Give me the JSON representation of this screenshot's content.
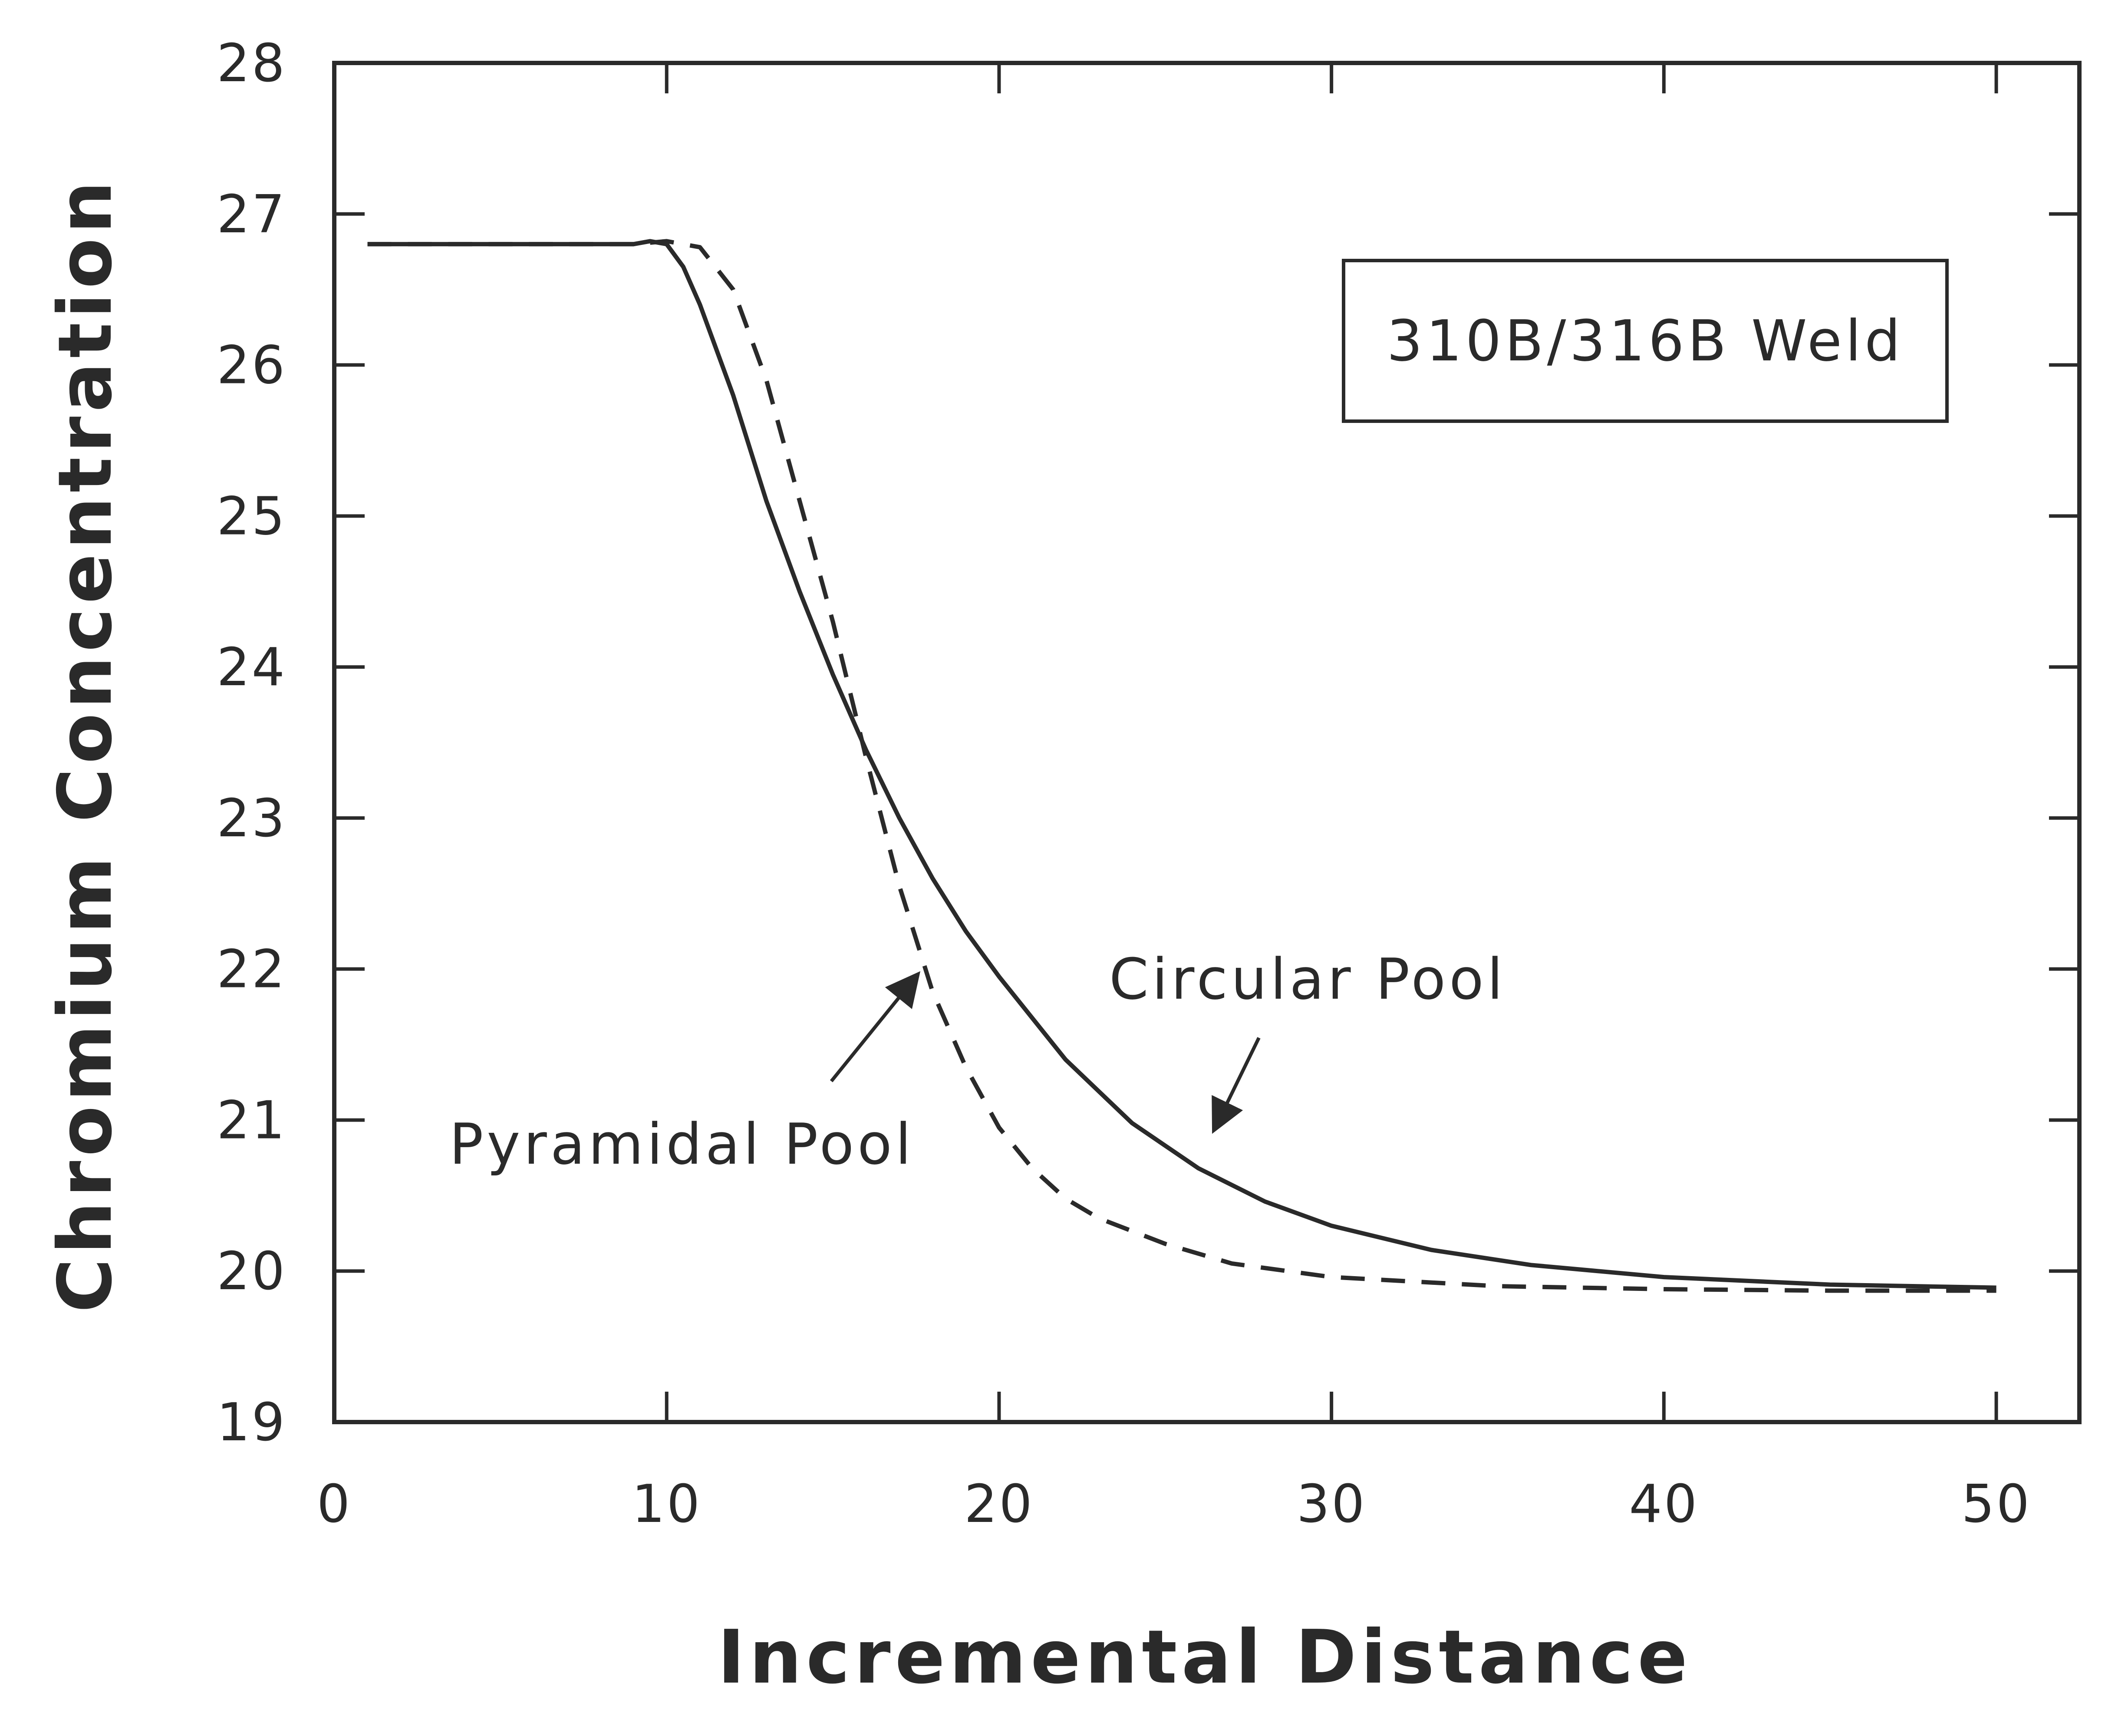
{
  "chart_data": {
    "type": "line",
    "title": "",
    "xlabel": "Incremental Distance",
    "ylabel": "Chromium Concentration",
    "xlim": [
      0,
      52.5
    ],
    "ylim": [
      19,
      28
    ],
    "xticks": [
      0,
      10,
      20,
      30,
      40,
      50
    ],
    "yticks": [
      19,
      20,
      21,
      22,
      23,
      24,
      25,
      26,
      27,
      28
    ],
    "grid": false,
    "legend_box": {
      "text": "310B/316B Weld",
      "placement": "top-right"
    },
    "series": [
      {
        "name": "Circular Pool",
        "style": "solid",
        "x": [
          1,
          5,
          9,
          9.5,
          10,
          10.5,
          11,
          12,
          13,
          14,
          15,
          16,
          17,
          18,
          19,
          20,
          22,
          24,
          26,
          28,
          30,
          33,
          36,
          40,
          45,
          50
        ],
        "y": [
          26.8,
          26.8,
          26.8,
          26.82,
          26.8,
          26.65,
          26.4,
          25.8,
          25.1,
          24.5,
          23.95,
          23.45,
          23.0,
          22.6,
          22.25,
          21.95,
          21.4,
          20.98,
          20.68,
          20.46,
          20.3,
          20.14,
          20.04,
          19.96,
          19.91,
          19.89
        ]
      },
      {
        "name": "Pyramidal Pool",
        "style": "dashed",
        "x": [
          1,
          5,
          9,
          10,
          11,
          12,
          13,
          14,
          15,
          16,
          17,
          18,
          19,
          20,
          21,
          22,
          23,
          25,
          27,
          30,
          35,
          40,
          45,
          50
        ],
        "y": [
          26.8,
          26.8,
          26.8,
          26.82,
          26.78,
          26.5,
          25.9,
          25.1,
          24.3,
          23.4,
          22.55,
          21.85,
          21.35,
          20.95,
          20.68,
          20.48,
          20.35,
          20.18,
          20.05,
          19.96,
          19.9,
          19.88,
          19.87,
          19.87
        ]
      }
    ],
    "annotations": [
      {
        "text": "Circular Pool",
        "target_series": "Circular Pool",
        "arrow_to": [
          26.5,
          20.95
        ]
      },
      {
        "text": "Pyramidal Pool",
        "target_series": "Pyramidal Pool",
        "arrow_to": [
          17.5,
          21.95
        ]
      }
    ]
  }
}
